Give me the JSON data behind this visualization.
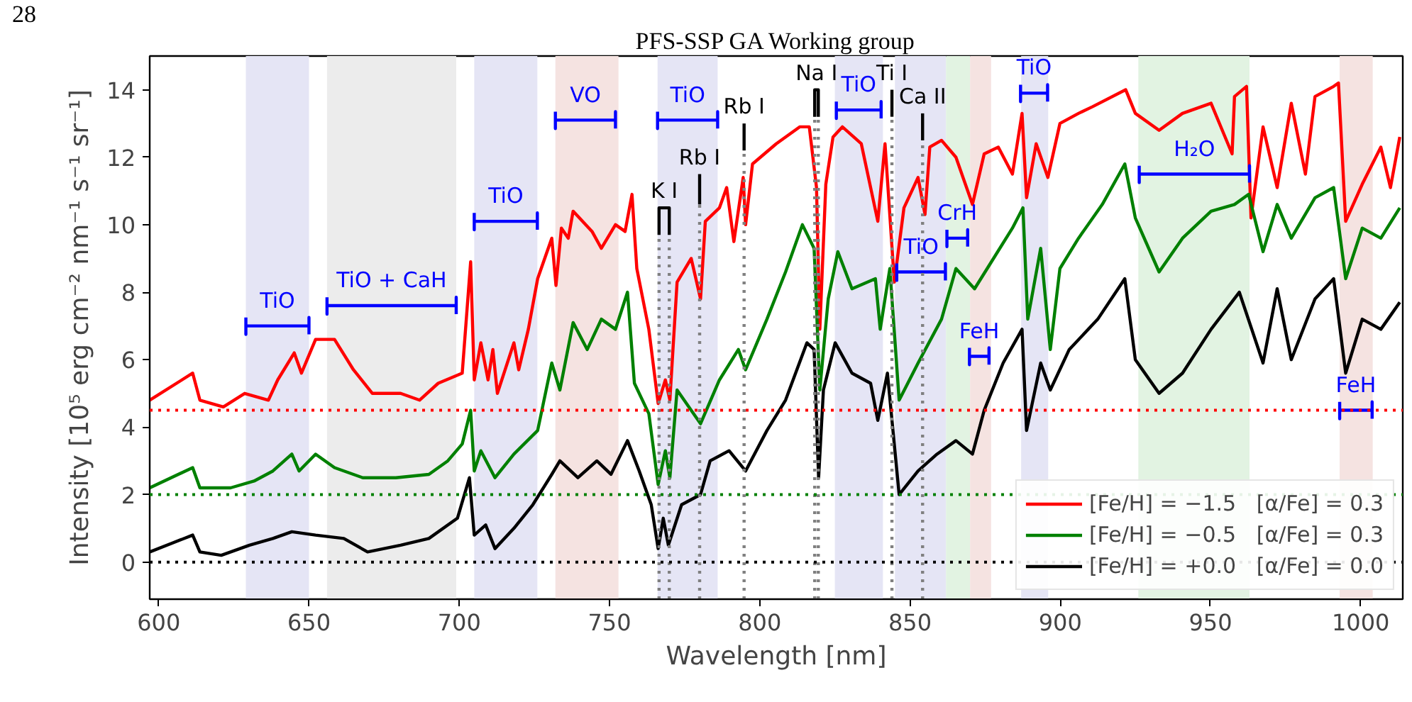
{
  "chart_data": {
    "type": "line",
    "xlabel": "Wavelength [nm]",
    "ylabel": "Intensity [10⁵ erg cm⁻² nm⁻¹ s⁻¹ sr⁻¹]",
    "xlim": [
      597,
      1014
    ],
    "ylim": [
      -1.1,
      15
    ],
    "xticks": [
      600,
      650,
      700,
      750,
      800,
      850,
      900,
      950,
      1000
    ],
    "yticks": [
      0,
      2,
      4,
      6,
      8,
      10,
      12,
      14
    ],
    "grid": false,
    "legend": "bottom right",
    "line_style": "solid",
    "marker": "none",
    "series": [
      {
        "name": "[Fe/H] = −1.5   [α/Fe] = 0.3",
        "color": "#ff0000",
        "x": [
          597,
          611.3,
          613.7,
          621.5,
          628.6,
          636.5,
          639.6,
          645.1,
          647.5,
          652.2,
          658.5,
          664.8,
          671.1,
          680.5,
          686.8,
          693,
          701,
          703.8,
          705,
          707.2,
          709.6,
          711.2,
          712.7,
          718.2,
          719.8,
          723,
          726.1,
          730.8,
          732.2,
          734,
          736.3,
          737.9,
          744.2,
          747.3,
          752,
          755.2,
          757.5,
          759.1,
          763.1,
          766.2,
          768.6,
          770.1,
          772.5,
          777.2,
          780.3,
          781.9,
          786.6,
          789,
          791.4,
          794.5,
          795.3,
          797.6,
          805.5,
          813.3,
          816.5,
          818.9,
          820,
          822,
          824.4,
          827.5,
          833.8,
          839.3,
          841.7,
          844.8,
          848,
          852.7,
          855,
          856.6,
          860.5,
          865.3,
          870.8,
          874.7,
          879.4,
          884.1,
          887.3,
          888.8,
          892,
          895.9,
          899.9,
          906.1,
          910.8,
          921.8,
          925,
          932.9,
          940.7,
          950.2,
          957.2,
          958,
          962,
          963.5,
          967.5,
          972.2,
          976.9,
          981.6,
          984.8,
          991,
          992.6,
          995,
          1000.5,
          1006.7,
          1009.9,
          1013
        ],
        "values": [
          4.8,
          5.6,
          4.8,
          4.6,
          5.0,
          4.8,
          5.4,
          6.2,
          5.6,
          6.6,
          6.6,
          5.7,
          5.0,
          5.0,
          4.8,
          5.3,
          5.6,
          8.9,
          5.4,
          6.5,
          5.4,
          6.3,
          5.0,
          6.5,
          5.7,
          6.9,
          8.4,
          9.6,
          8.2,
          9.9,
          9.6,
          10.4,
          9.8,
          9.3,
          10.0,
          9.8,
          10.9,
          8.7,
          6.9,
          4.7,
          5.4,
          4.8,
          8.3,
          9.0,
          7.8,
          10.1,
          10.5,
          11.1,
          9.5,
          11.4,
          10.0,
          11.8,
          12.4,
          12.9,
          12.9,
          11.1,
          6.9,
          11.2,
          12.6,
          12.9,
          12.4,
          10.1,
          12.4,
          8.3,
          10.5,
          11.4,
          10.3,
          12.3,
          12.5,
          12.0,
          10.6,
          12.1,
          12.3,
          11.5,
          13.3,
          10.8,
          12.4,
          11.4,
          13.0,
          13.3,
          13.5,
          14.0,
          13.3,
          12.8,
          13.3,
          13.6,
          12.1,
          13.8,
          14.1,
          10.2,
          12.9,
          11.1,
          13.6,
          11.5,
          13.8,
          14.1,
          14.2,
          10.1,
          11.2,
          12.3,
          11.1,
          12.6
        ]
      },
      {
        "name": "[Fe/H] = −0.5   [α/Fe] = 0.3",
        "color": "#008000",
        "x": [
          597,
          611.3,
          613.7,
          623.9,
          631.7,
          638,
          644.3,
          646.7,
          652.2,
          658.5,
          667.9,
          678.9,
          689.9,
          696.2,
          701,
          703.8,
          705,
          707.2,
          711.9,
          718.2,
          726.1,
          730.8,
          733.5,
          737.9,
          742.6,
          747.3,
          752,
          756,
          758.3,
          763.1,
          766.2,
          768.6,
          770.1,
          772.5,
          780.3,
          786.6,
          792.9,
          795.3,
          802.4,
          808.6,
          814.2,
          818.1,
          820,
          822.8,
          826,
          830.7,
          838.5,
          840.1,
          843.3,
          846.4,
          852.7,
          860.5,
          865.3,
          871.5,
          877.8,
          884.1,
          887.6,
          889.2,
          893.5,
          896.7,
          899.9,
          906.1,
          914,
          921.5,
          925,
          932.9,
          940.7,
          950.2,
          958,
          962.7,
          967.5,
          972.2,
          976.9,
          984.8,
          991,
          995,
          1000.5,
          1006.7,
          1013
        ],
        "values": [
          2.2,
          2.8,
          2.2,
          2.2,
          2.4,
          2.7,
          3.2,
          2.7,
          3.2,
          2.8,
          2.5,
          2.5,
          2.6,
          3.0,
          3.5,
          4.5,
          2.7,
          3.3,
          2.5,
          3.2,
          3.9,
          5.9,
          5.1,
          7.1,
          6.3,
          7.2,
          6.9,
          8.0,
          5.3,
          4.4,
          2.3,
          3.3,
          2.5,
          5.1,
          4.1,
          5.4,
          6.3,
          5.7,
          7.2,
          8.6,
          10.0,
          9.3,
          5.1,
          7.8,
          9.2,
          8.1,
          8.4,
          6.9,
          8.7,
          4.8,
          5.9,
          7.2,
          8.7,
          8.1,
          9.0,
          9.9,
          10.5,
          7.2,
          9.3,
          6.3,
          8.7,
          9.6,
          10.6,
          11.8,
          10.2,
          8.6,
          9.6,
          10.4,
          10.6,
          10.9,
          9.2,
          10.6,
          9.6,
          10.8,
          11.1,
          8.4,
          9.9,
          9.6,
          10.5
        ]
      },
      {
        "name": "[Fe/H] = +0.0   [α/Fe] = 0.0",
        "color": "#000000",
        "x": [
          597,
          611.3,
          613.7,
          620.8,
          630.2,
          638,
          644.3,
          652.2,
          661.6,
          669.5,
          680.5,
          689.9,
          699.4,
          703.4,
          705,
          708.8,
          711.9,
          718.2,
          724.5,
          730.8,
          733.5,
          739.5,
          745.8,
          750.5,
          756,
          759.9,
          763.9,
          766.2,
          767.9,
          769.6,
          774,
          780.3,
          783.5,
          789.8,
          795.3,
          802.4,
          808.6,
          815.7,
          818.1,
          819.6,
          821.2,
          825.1,
          830.7,
          836.9,
          839.3,
          842.5,
          846.4,
          852.7,
          859,
          865.3,
          870.8,
          874.7,
          881,
          887.3,
          888.8,
          893.5,
          896.7,
          903,
          912.5,
          921.5,
          925,
          932.9,
          940.7,
          950.2,
          959.6,
          967.5,
          972.2,
          976.9,
          984.8,
          991,
          995,
          1000.5,
          1006.7,
          1013
        ],
        "values": [
          0.3,
          0.8,
          0.3,
          0.2,
          0.5,
          0.7,
          0.9,
          0.8,
          0.7,
          0.3,
          0.5,
          0.7,
          1.3,
          2.5,
          0.8,
          1.1,
          0.4,
          1.0,
          1.7,
          2.6,
          3.0,
          2.5,
          3.0,
          2.6,
          3.6,
          2.7,
          1.7,
          0.4,
          1.3,
          0.5,
          1.7,
          2.0,
          3.0,
          3.3,
          2.7,
          3.9,
          4.8,
          6.5,
          6.3,
          2.5,
          5.1,
          6.5,
          5.6,
          5.3,
          4.2,
          5.6,
          2.0,
          2.7,
          3.2,
          3.6,
          3.2,
          4.5,
          5.9,
          6.9,
          3.9,
          5.9,
          5.1,
          6.3,
          7.2,
          8.4,
          6.0,
          5.0,
          5.6,
          6.9,
          8.0,
          5.9,
          8.1,
          6.0,
          7.8,
          8.4,
          5.6,
          7.2,
          6.9,
          7.7
        ]
      },
      {
        "name": "TiO",
        "color": "#0000ff",
        "x": [
          629,
          629,
          629,
          650,
          650,
          650
        ],
        "values": [
          7.25,
          6.75,
          7.0,
          7.0,
          7.25,
          6.75
        ]
      },
      {
        "name": "TiO + CaH",
        "color": "#0000ff",
        "x": [
          656,
          656,
          656,
          699,
          699,
          699
        ],
        "values": [
          7.85,
          7.35,
          7.6,
          7.6,
          7.85,
          7.35
        ]
      },
      {
        "name": "TiO",
        "color": "#0000ff",
        "x": [
          705,
          705,
          705,
          726,
          726,
          726
        ],
        "values": [
          10.35,
          9.85,
          10.1,
          10.1,
          10.35,
          9.85
        ]
      },
      {
        "name": "VO",
        "color": "#0000ff",
        "x": [
          732,
          732,
          732,
          752,
          752,
          752
        ],
        "values": [
          13.35,
          12.85,
          13.1,
          13.1,
          13.35,
          12.85
        ]
      },
      {
        "name": "TiO",
        "color": "#0000ff",
        "x": [
          766,
          766,
          766,
          786,
          786,
          786
        ],
        "values": [
          13.35,
          12.85,
          13.1,
          13.1,
          13.35,
          12.85
        ]
      },
      {
        "name": "TiO",
        "color": "#0000ff",
        "x": [
          825.5,
          825.5,
          825.5,
          840.4,
          840.4,
          840.4
        ],
        "values": [
          13.65,
          13.15,
          13.4,
          13.4,
          13.65,
          13.15
        ]
      },
      {
        "name": "TiO",
        "color": "#0000ff",
        "x": [
          845.6,
          845.6,
          845.6,
          861.8,
          861.8,
          861.8
        ],
        "values": [
          8.85,
          8.35,
          8.6,
          8.6,
          8.85,
          8.35
        ]
      },
      {
        "name": "CrH",
        "color": "#0000ff",
        "x": [
          862.3,
          862.3,
          862.3,
          869.2,
          869.2,
          869.2
        ],
        "values": [
          9.85,
          9.35,
          9.6,
          9.6,
          9.85,
          9.35
        ]
      },
      {
        "name": "FeH",
        "color": "#0000ff",
        "x": [
          869.8,
          869.8,
          869.8,
          876.3,
          876.3,
          876.3
        ],
        "values": [
          6.35,
          5.85,
          6.1,
          6.1,
          6.35,
          5.85
        ]
      },
      {
        "name": "TiO",
        "color": "#0000ff",
        "x": [
          886.8,
          886.8,
          886.8,
          895.8,
          895.8,
          895.8
        ],
        "values": [
          14.15,
          13.65,
          13.9,
          13.9,
          14.15,
          13.65
        ]
      },
      {
        "name": "H₂O",
        "color": "#0000ff",
        "x": [
          926.3,
          926.3,
          926.3,
          963,
          963,
          963
        ],
        "values": [
          11.75,
          11.25,
          11.5,
          11.5,
          11.75,
          11.25
        ]
      },
      {
        "name": "FeH",
        "color": "#0000ff",
        "x": [
          993,
          993,
          993,
          1003.8,
          1003.8,
          1003.8
        ],
        "values": [
          4.75,
          4.25,
          4.5,
          4.5,
          4.75,
          4.25
        ]
      },
      {
        "name": "K I",
        "color": "#000000",
        "x": [
          766.5,
          766.5,
          769.9,
          769.9
        ],
        "values": [
          9.7,
          10.5,
          10.5,
          9.7
        ]
      },
      {
        "name": "Rb I",
        "color": "#000000",
        "x": [
          780,
          780
        ],
        "values": [
          10.6,
          11.5
        ]
      },
      {
        "name": "Rb I",
        "color": "#000000",
        "x": [
          794.8,
          794.8
        ],
        "values": [
          12.2,
          13.0
        ]
      },
      {
        "name": "Na I",
        "color": "#000000",
        "x": [
          818.3,
          818.3,
          819.5,
          819.5
        ],
        "values": [
          13.2,
          14.0,
          14.0,
          13.2
        ]
      },
      {
        "name": "Ti I",
        "color": "#000000",
        "x": [
          844,
          844
        ],
        "values": [
          13.2,
          14.0
        ]
      },
      {
        "name": "Ca II",
        "color": "#000000",
        "x": [
          854.2,
          854.2
        ],
        "values": [
          12.5,
          13.3
        ]
      },
      {
        "color": "#808080",
        "line_style": "dotted",
        "x": [
          766.5,
          766.5
        ],
        "values": [
          -1.1,
          9.7
        ]
      },
      {
        "color": "#808080",
        "line_style": "dotted",
        "x": [
          769.9,
          769.9
        ],
        "values": [
          -1.1,
          9.7
        ]
      },
      {
        "color": "#808080",
        "line_style": "dotted",
        "x": [
          780,
          780
        ],
        "values": [
          -1.1,
          10.6
        ]
      },
      {
        "color": "#808080",
        "line_style": "dotted",
        "x": [
          794.8,
          794.8
        ],
        "values": [
          -1.1,
          12.2
        ]
      },
      {
        "color": "#808080",
        "line_style": "dotted",
        "x": [
          818.3,
          818.3
        ],
        "values": [
          -1.1,
          13.2
        ]
      },
      {
        "color": "#808080",
        "line_style": "dotted",
        "x": [
          819.5,
          819.5
        ],
        "values": [
          -1.1,
          13.2
        ]
      },
      {
        "color": "#808080",
        "line_style": "dotted",
        "x": [
          844,
          844
        ],
        "values": [
          -1.1,
          13.2
        ]
      },
      {
        "color": "#808080",
        "line_style": "dotted",
        "x": [
          854.2,
          854.2
        ],
        "values": [
          -1.1,
          12.5
        ]
      }
    ],
    "ref_lines": [
      {
        "axis": "y",
        "value": 4.5,
        "color": "#ff0000",
        "line_style": "dotted"
      },
      {
        "axis": "y",
        "value": 2,
        "color": "#008000",
        "line_style": "dotted"
      },
      {
        "axis": "y",
        "value": 0,
        "color": "#000000",
        "line_style": "dotted"
      }
    ],
    "bands": [
      {
        "axis": "x",
        "from": 629,
        "to": 650,
        "color": "#e5e5f5"
      },
      {
        "axis": "x",
        "from": 656,
        "to": 699,
        "color": "#ececec"
      },
      {
        "axis": "x",
        "from": 705,
        "to": 726,
        "color": "#e5e5f5"
      },
      {
        "axis": "x",
        "from": 732,
        "to": 753,
        "color": "#f5e3e1"
      },
      {
        "axis": "x",
        "from": 766,
        "to": 786,
        "color": "#e5e5f5"
      },
      {
        "axis": "x",
        "from": 825,
        "to": 841,
        "color": "#e5e5f5"
      },
      {
        "axis": "x",
        "from": 845,
        "to": 862,
        "color": "#e5e5f5"
      },
      {
        "axis": "x",
        "from": 862,
        "to": 870,
        "color": "#e2f3e2"
      },
      {
        "axis": "x",
        "from": 870,
        "to": 877,
        "color": "#f5e3e1"
      },
      {
        "axis": "x",
        "from": 887,
        "to": 896,
        "color": "#e5e5f5"
      },
      {
        "axis": "x",
        "from": 926,
        "to": 963,
        "color": "#e2f3e2"
      },
      {
        "axis": "x",
        "from": 993,
        "to": 1004,
        "color": "#f5e3e1"
      }
    ],
    "annotations": [
      "28",
      "PFS-SSP GA Working group"
    ]
  }
}
